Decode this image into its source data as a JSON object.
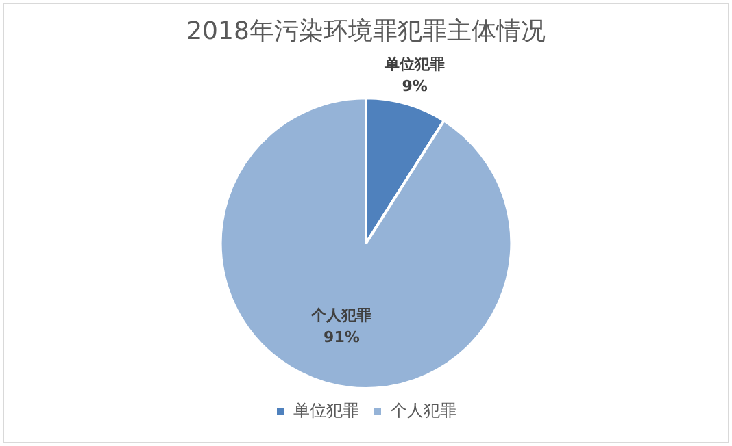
{
  "chart_data": {
    "type": "pie",
    "title": "2018年污染环境罪犯罪主体情况",
    "categories": [
      "单位犯罪",
      "个人犯罪"
    ],
    "values": [
      9,
      91
    ],
    "colors": [
      "#4f81bd",
      "#95b3d7"
    ],
    "value_labels": [
      "9%",
      "91%"
    ],
    "legend": "bottom"
  }
}
